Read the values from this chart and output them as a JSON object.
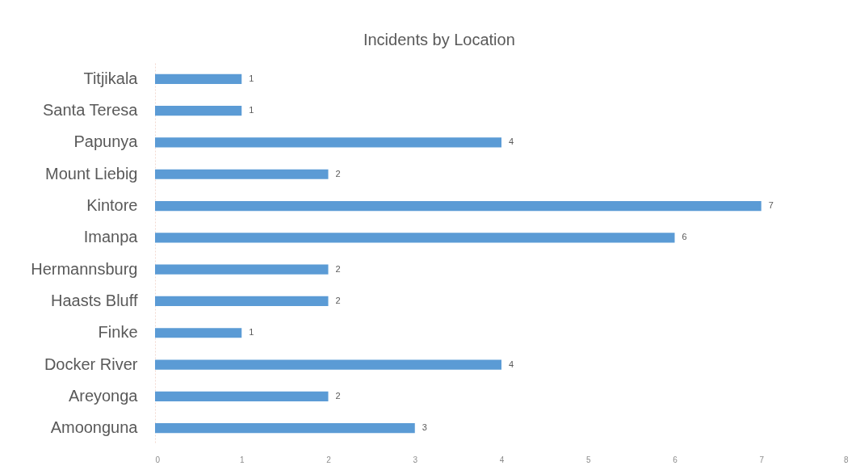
{
  "chart_data": {
    "type": "bar",
    "orientation": "horizontal",
    "title": "Incidents by Location",
    "categories": [
      "Titjikala",
      "Santa Teresa",
      "Papunya",
      "Mount Liebig",
      "Kintore",
      "Imanpa",
      "Hermannsburg",
      "Haasts Bluff",
      "Finke",
      "Docker River",
      "Areyonga",
      "Amoonguna"
    ],
    "values": [
      1,
      1,
      4,
      2,
      7,
      6,
      2,
      2,
      1,
      4,
      2,
      3
    ],
    "color": "#5b9bd5",
    "xlim": [
      0,
      8
    ],
    "xticks": [
      0,
      1,
      2,
      3,
      4,
      5,
      6,
      7,
      8
    ],
    "grid": false,
    "data_labels": true
  }
}
